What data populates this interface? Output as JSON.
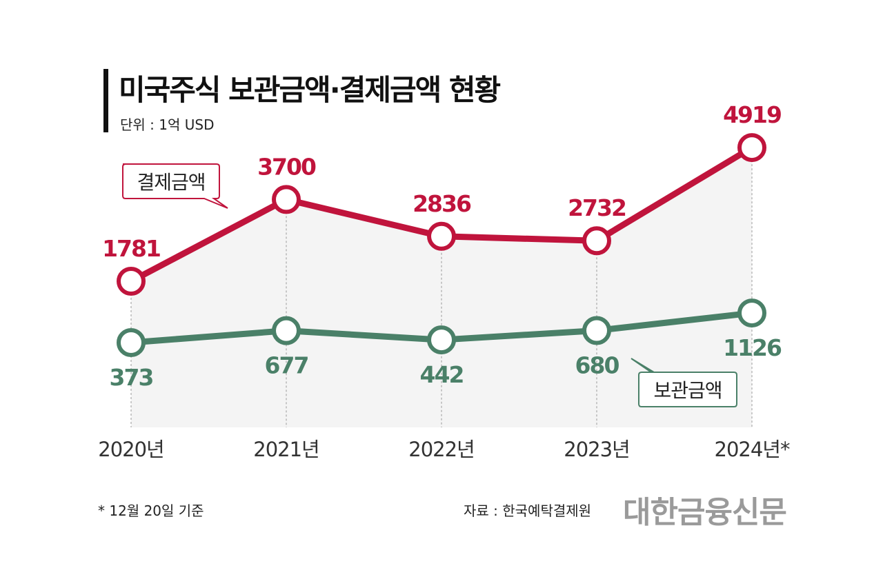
{
  "chart_data": {
    "type": "line",
    "title": "미국주식 보관금액·결제금액 현황",
    "unit": "단위 : 1억 USD",
    "categories": [
      "2020년",
      "2021년",
      "2022년",
      "2023년",
      "2024년*"
    ],
    "series": [
      {
        "name": "결제금액",
        "color": "#c0143c",
        "values": [
          1781,
          3700,
          2836,
          2732,
          4919
        ]
      },
      {
        "name": "보관금액",
        "color": "#4a8068",
        "values": [
          373,
          677,
          442,
          680,
          1126
        ]
      }
    ],
    "grid": false,
    "footnote": "* 12월 20일 기준",
    "source": "자료 : 한국예탁결제원",
    "logo": "대한금융신문"
  }
}
